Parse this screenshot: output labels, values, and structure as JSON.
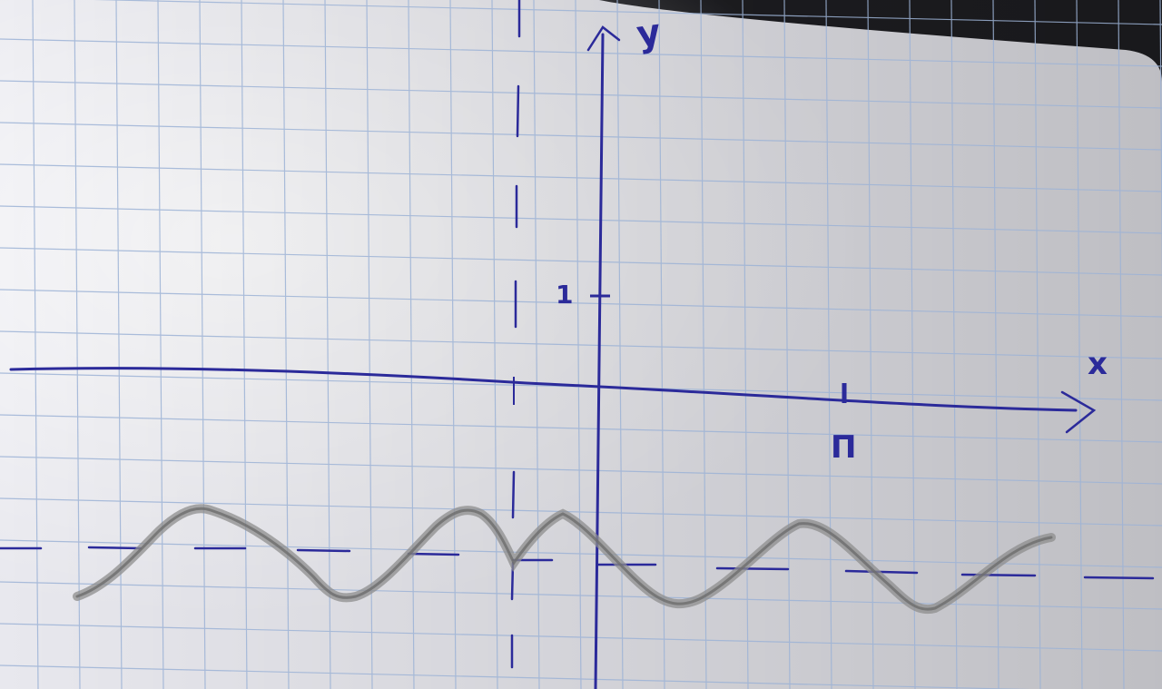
{
  "labels": {
    "y_axis": "y",
    "x_axis": "x",
    "tick_y": "1",
    "tick_x": "П"
  },
  "colors": {
    "paper": "#e9e9ee",
    "grid": "#9db3d6",
    "ink": "#2b2a9a",
    "pencil": "#8e8e8e",
    "background": "#1e1e22"
  }
}
